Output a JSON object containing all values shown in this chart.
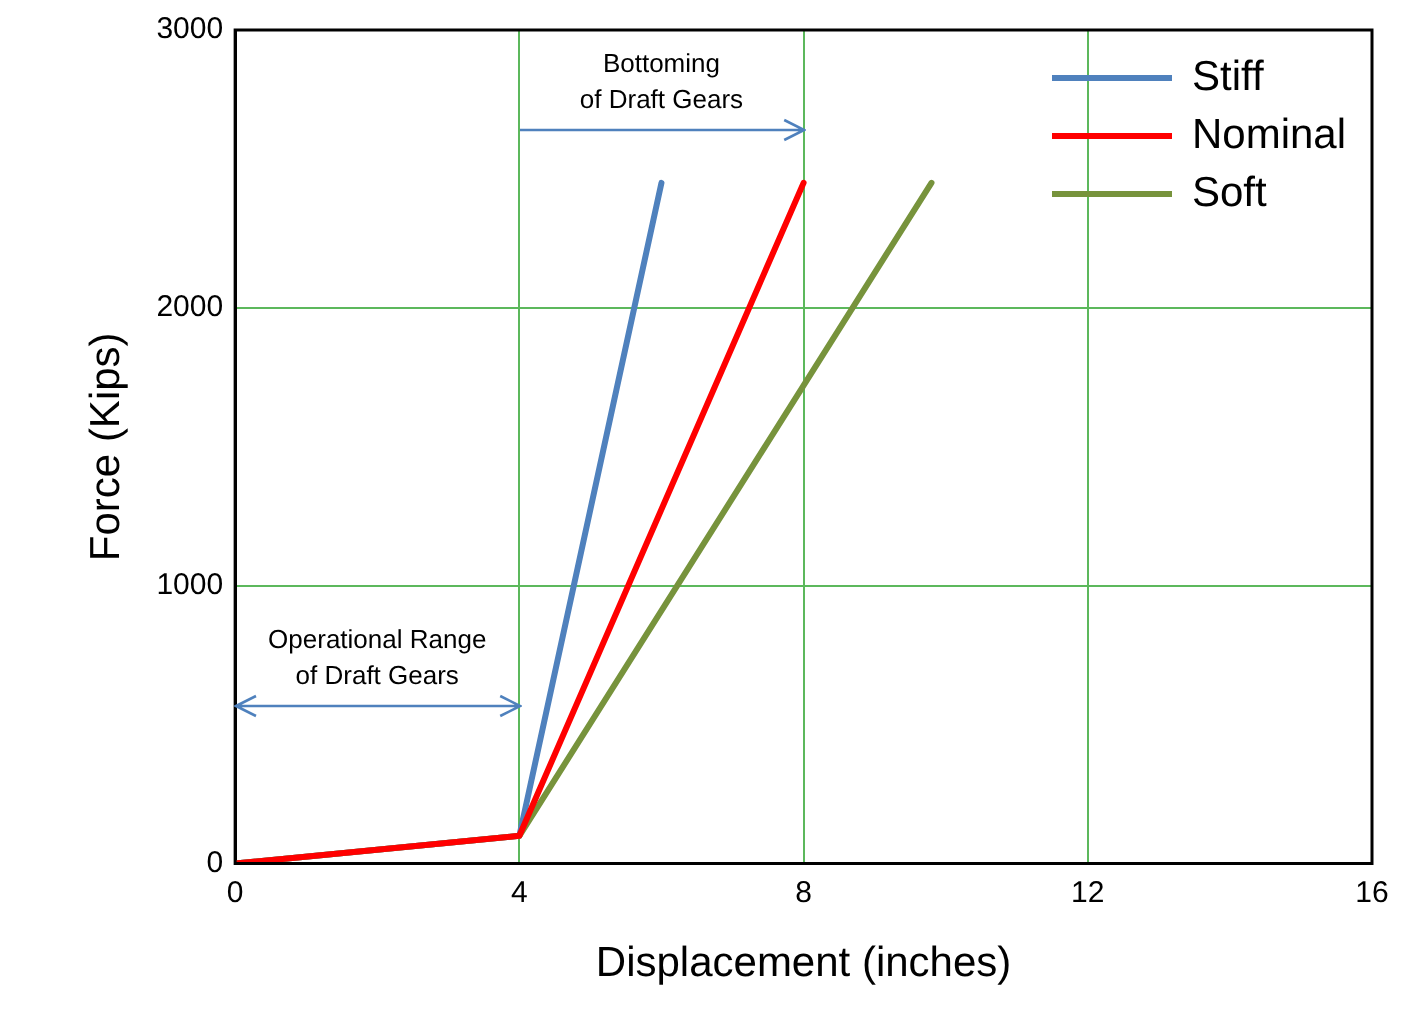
{
  "chart_data": {
    "type": "line",
    "xlabel": "Displacement (inches)",
    "ylabel": "Force (Kips)",
    "xlim": [
      0,
      16
    ],
    "xticks": [
      0,
      4,
      8,
      12,
      16
    ],
    "ylim": [
      0,
      3000
    ],
    "yticks": [
      0,
      1000,
      2000,
      3000
    ],
    "grid": true,
    "legend": "top right",
    "marker": "none",
    "line_style": "solid",
    "series": [
      {
        "name": "Stiff",
        "color": "#4f81bd",
        "x": [
          0,
          4,
          6
        ],
        "values": [
          0,
          100,
          2450
        ]
      },
      {
        "name": "Nominal",
        "color": "#ff0000",
        "x": [
          0,
          4,
          8
        ],
        "values": [
          0,
          100,
          2450
        ]
      },
      {
        "name": "Soft",
        "color": "#77933c",
        "x": [
          0,
          4,
          9.8
        ],
        "values": [
          0,
          100,
          2450
        ]
      }
    ],
    "annotations": [
      "Bottoming\nof Draft Gears",
      "Operational Range\nof Draft Gears"
    ]
  }
}
